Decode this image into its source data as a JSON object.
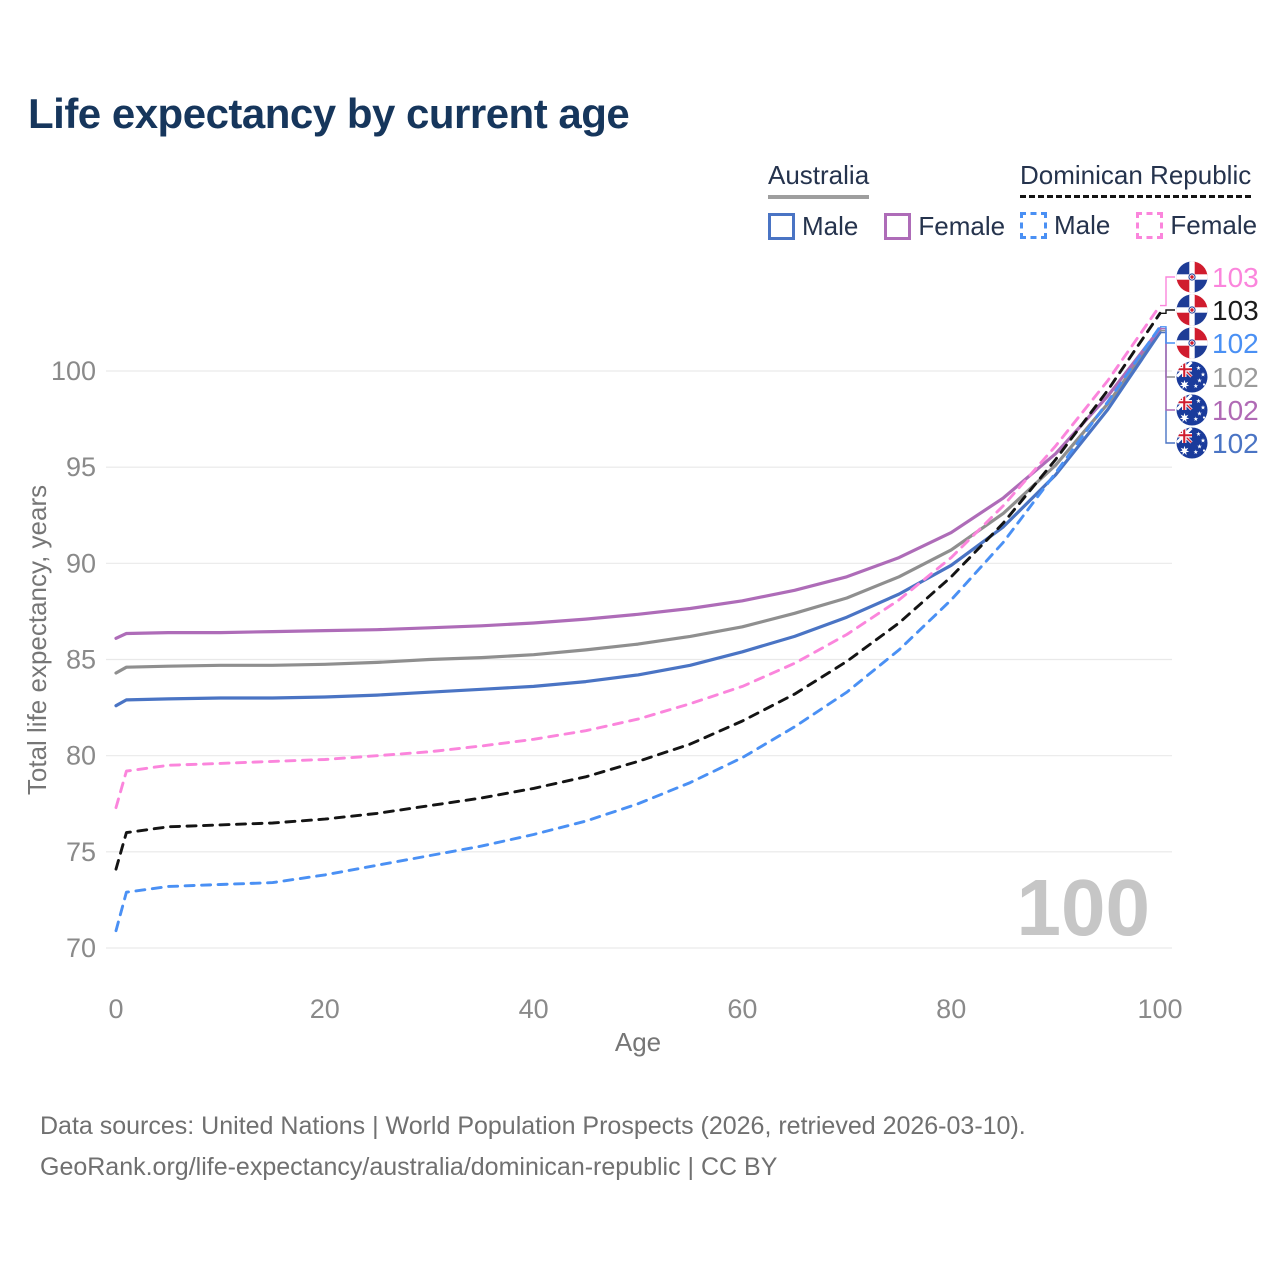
{
  "title": "Life expectancy by current age",
  "legend": {
    "groups": [
      {
        "country": "Australia",
        "underline": "solid",
        "items": [
          {
            "label": "Male"
          },
          {
            "label": "Female"
          }
        ]
      },
      {
        "country": "Dominican Republic",
        "underline": "dashed",
        "items": [
          {
            "label": "Male"
          },
          {
            "label": "Female"
          }
        ]
      }
    ]
  },
  "colors": {
    "australia_male": "#4a74c4",
    "australia_female": "#ae6cb8",
    "australia_all": "#8f8f8f",
    "dominican_republic_male": "#4a90f4",
    "dominican_republic_female": "#fb85dc",
    "dominican_republic_all": "#141414",
    "australia_underline": "#9e9e9e",
    "dominican_republic_underline": "#141414",
    "title_text": "#16365c",
    "axis_text": "#8a8a8a",
    "gridline": "#e9e9e9",
    "watermark_text": "#c6c6c6"
  },
  "watermark": "100",
  "footer": {
    "line1": "Data sources: United Nations | World Population Prospects (2026, retrieved 2026-03-10).",
    "line2": "GeoRank.org/life-expectancy/australia/dominican-republic | CC BY"
  },
  "chart_data": {
    "type": "line",
    "title": "Life expectancy by current age",
    "xlabel": "Age",
    "ylabel": "Total life expectancy, years",
    "xlim": [
      0,
      100
    ],
    "ylim": [
      70,
      103.5
    ],
    "x_ticks": [
      0,
      20,
      40,
      60,
      80,
      100
    ],
    "y_ticks": [
      70,
      75,
      80,
      85,
      90,
      95,
      100
    ],
    "grid": true,
    "legend_position": "top-right",
    "x": [
      0,
      1,
      5,
      10,
      15,
      20,
      25,
      30,
      35,
      40,
      45,
      50,
      55,
      60,
      65,
      70,
      75,
      80,
      85,
      90,
      95,
      100
    ],
    "series": [
      {
        "id": "australia-all",
        "name": "Australia All",
        "country": "Australia",
        "sex": "All",
        "color": "#8f8f8f",
        "dash": false,
        "end_label_index": 3,
        "values": [
          84.3,
          84.6,
          84.65,
          84.7,
          84.7,
          84.75,
          84.85,
          85.0,
          85.1,
          85.25,
          85.5,
          85.8,
          86.2,
          86.7,
          87.4,
          88.2,
          89.3,
          90.7,
          92.6,
          95.1,
          98.3,
          102.1
        ]
      },
      {
        "id": "australia-male",
        "name": "Australia Male",
        "country": "Australia",
        "sex": "Male",
        "color": "#4a74c4",
        "dash": false,
        "end_label_index": 5,
        "values": [
          82.6,
          82.9,
          82.95,
          83.0,
          83.0,
          83.05,
          83.15,
          83.3,
          83.45,
          83.6,
          83.85,
          84.2,
          84.7,
          85.4,
          86.2,
          87.2,
          88.4,
          89.9,
          91.9,
          94.6,
          98.0,
          102.0
        ]
      },
      {
        "id": "australia-female",
        "name": "Australia Female",
        "country": "Australia",
        "sex": "Female",
        "color": "#ae6cb8",
        "dash": false,
        "end_label_index": 4,
        "values": [
          86.1,
          86.35,
          86.4,
          86.4,
          86.45,
          86.5,
          86.55,
          86.65,
          86.75,
          86.9,
          87.1,
          87.35,
          87.65,
          88.05,
          88.6,
          89.3,
          90.3,
          91.6,
          93.4,
          95.7,
          98.7,
          102.2
        ]
      },
      {
        "id": "dominican-republic-male",
        "name": "Dominican Republic Male",
        "country": "Dominican Republic",
        "sex": "Male",
        "color": "#4a90f4",
        "dash": true,
        "end_label_index": 2,
        "values": [
          70.9,
          72.9,
          73.2,
          73.3,
          73.4,
          73.8,
          74.3,
          74.8,
          75.3,
          75.9,
          76.6,
          77.5,
          78.6,
          79.9,
          81.5,
          83.3,
          85.5,
          88.1,
          91.1,
          94.7,
          98.4,
          102.3
        ]
      },
      {
        "id": "dominican-republic-all",
        "name": "Dominican Republic All",
        "country": "Dominican Republic",
        "sex": "All",
        "color": "#141414",
        "dash": true,
        "end_label_index": 1,
        "values": [
          74.1,
          76.0,
          76.3,
          76.4,
          76.5,
          76.7,
          77.0,
          77.4,
          77.8,
          78.3,
          78.9,
          79.7,
          80.6,
          81.8,
          83.2,
          84.9,
          86.9,
          89.3,
          92.1,
          95.4,
          99.0,
          103.0
        ]
      },
      {
        "id": "dominican-republic-female",
        "name": "Dominican Republic Female",
        "country": "Dominican Republic",
        "sex": "Female",
        "color": "#fb85dc",
        "dash": true,
        "end_label_index": 0,
        "values": [
          77.3,
          79.2,
          79.5,
          79.6,
          79.7,
          79.8,
          80.0,
          80.2,
          80.5,
          80.85,
          81.3,
          81.9,
          82.7,
          83.6,
          84.8,
          86.3,
          88.1,
          90.3,
          93.0,
          96.1,
          99.5,
          103.4
        ]
      }
    ],
    "end_labels": [
      {
        "value": "103",
        "color": "#fb85dc",
        "flag": "dominican-republic"
      },
      {
        "value": "103",
        "color": "#1a1a1a",
        "flag": "dominican-republic"
      },
      {
        "value": "102",
        "color": "#4a90f4",
        "flag": "dominican-republic"
      },
      {
        "value": "102",
        "color": "#9b9b9b",
        "flag": "australia"
      },
      {
        "value": "102",
        "color": "#b06ab5",
        "flag": "australia"
      },
      {
        "value": "102",
        "color": "#4a74c4",
        "flag": "australia"
      }
    ]
  }
}
